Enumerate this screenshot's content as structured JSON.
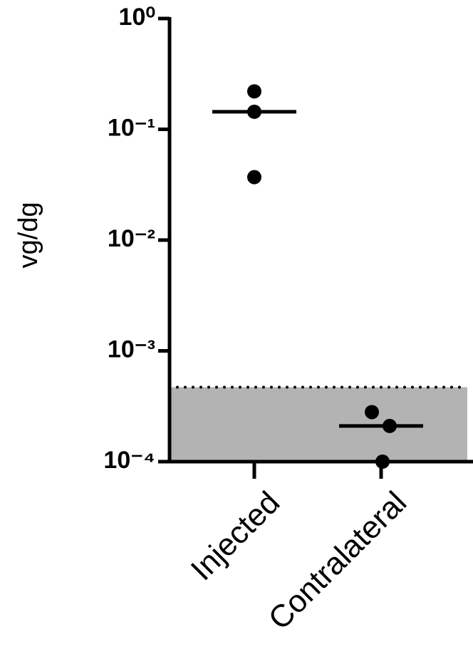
{
  "chart_data": {
    "type": "scatter",
    "y_label": "vg/dg",
    "log_scale": true,
    "categories": [
      "Injected",
      "Contralateral"
    ],
    "points": [
      [
        0.22,
        0.144,
        0.037
      ],
      [
        0.00028,
        0.00021,
        0.0001
      ]
    ],
    "medians": [
      0.144,
      0.00021
    ],
    "threshold": 0.00047,
    "ylim": [
      0.0001,
      1
    ],
    "yticks": [
      {
        "value": 1,
        "label": "10⁰"
      },
      {
        "value": 0.1,
        "label": "10⁻¹"
      },
      {
        "value": 0.01,
        "label": "10⁻²"
      },
      {
        "value": 0.001,
        "label": "10⁻³"
      },
      {
        "value": 0.0001,
        "label": "10⁻⁴"
      }
    ],
    "color": "#000000",
    "shade_color": "#b3b3b3"
  }
}
